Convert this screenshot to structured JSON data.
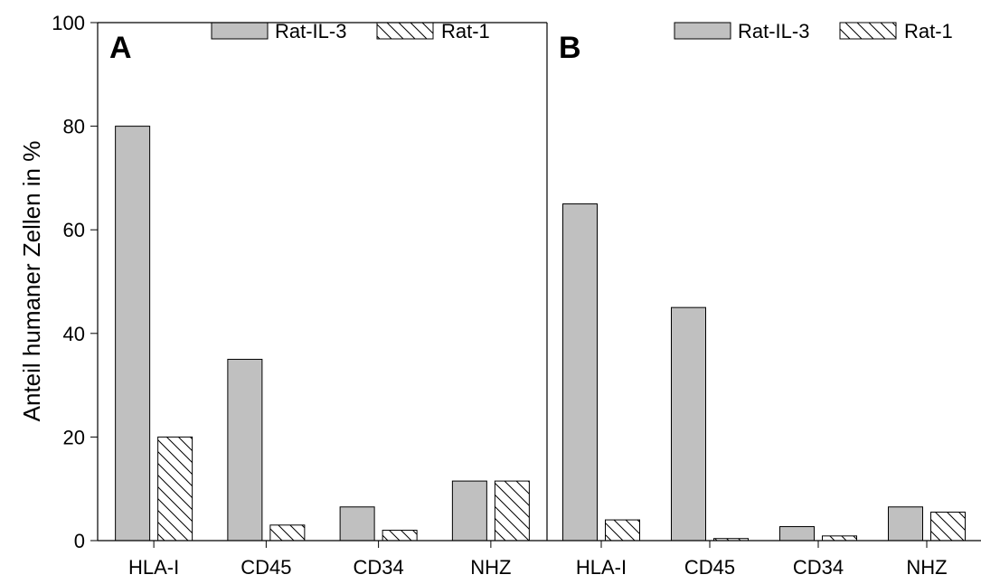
{
  "chart_data": {
    "type": "bar",
    "ylabel": "Anteil humaner Zellen in %",
    "ylim": [
      0,
      100
    ],
    "yticks": [
      0,
      20,
      40,
      60,
      80,
      100
    ],
    "grid": false,
    "legend_position": "top-right",
    "colors": {
      "rat_il3": "#c0c0c0",
      "rat1": "#ffffff",
      "outline": "#000000"
    },
    "patterns": {
      "rat_il3": "solid",
      "rat1": "diagonal-hatch"
    },
    "panels": [
      {
        "label": "A",
        "categories": [
          "HLA-I",
          "CD45",
          "CD34",
          "NHZ"
        ],
        "series": [
          {
            "name": "Rat-IL-3",
            "values": [
              80,
              35,
              6.5,
              11.5
            ]
          },
          {
            "name": "Rat-1",
            "values": [
              20,
              3,
              2,
              11.5
            ]
          }
        ]
      },
      {
        "label": "B",
        "categories": [
          "HLA-I",
          "CD45",
          "CD34",
          "NHZ"
        ],
        "series": [
          {
            "name": "Rat-IL-3",
            "values": [
              65,
              45,
              2.7,
              6.5
            ]
          },
          {
            "name": "Rat-1",
            "values": [
              4,
              0.4,
              0.9,
              5.5
            ]
          }
        ]
      }
    ]
  }
}
